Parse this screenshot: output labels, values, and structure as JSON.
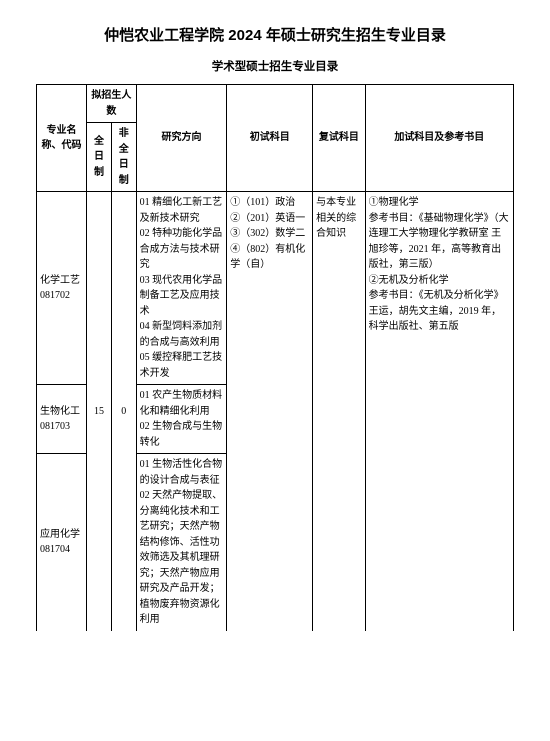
{
  "title": "仲恺农业工程学院 2024 年硕士研究生招生专业目录",
  "subtitle": "学术型硕士招生专业目录",
  "headers": {
    "col1": "专业名称、代码",
    "col23_group": "拟招生人数",
    "col2": "全日制",
    "col3": "非全日制",
    "col4": "研究方向",
    "col5": "初试科目",
    "col6": "复试科目",
    "col7": "加试科目及参考书目"
  },
  "enrollment": {
    "full_time": "15",
    "part_time": "0"
  },
  "rows": [
    {
      "major": "化学工艺\n081702",
      "direction": "01 精细化工新工艺及新技术研究\n02 特种功能化学品合成方法与技术研究\n03 现代农用化学品制备工艺及应用技术\n04 新型饲料添加剂的合成与高效利用\n05 缓控释肥工艺技术开发"
    },
    {
      "major": "生物化工\n081703",
      "direction": "01 农产生物质材料化和精细化利用\n02 生物合成与生物转化"
    },
    {
      "major": "应用化学\n081704",
      "direction": "01 生物活性化合物的设计合成与表征\n02 天然产物提取、分离纯化技术和工艺研究；天然产物结构修饰、活性功效筛选及其机理研究；天然产物应用研究及产品开发；植物废弃物资源化利用"
    }
  ],
  "prelim": "①（101）政治\n②（201）英语一\n③（302）数学二\n④（802）有机化学（自）",
  "retest": "与本专业相关的综合知识",
  "addexam": "①物理化学\n参考书目：《基础物理化学》（大连理工大学物理化学教研室 王旭珍等，2021 年，高等教育出版社，第三版）\n②无机及分析化学\n参考书目：《无机及分析化学》王运，胡先文主编，2019 年，科学出版社、第五版"
}
